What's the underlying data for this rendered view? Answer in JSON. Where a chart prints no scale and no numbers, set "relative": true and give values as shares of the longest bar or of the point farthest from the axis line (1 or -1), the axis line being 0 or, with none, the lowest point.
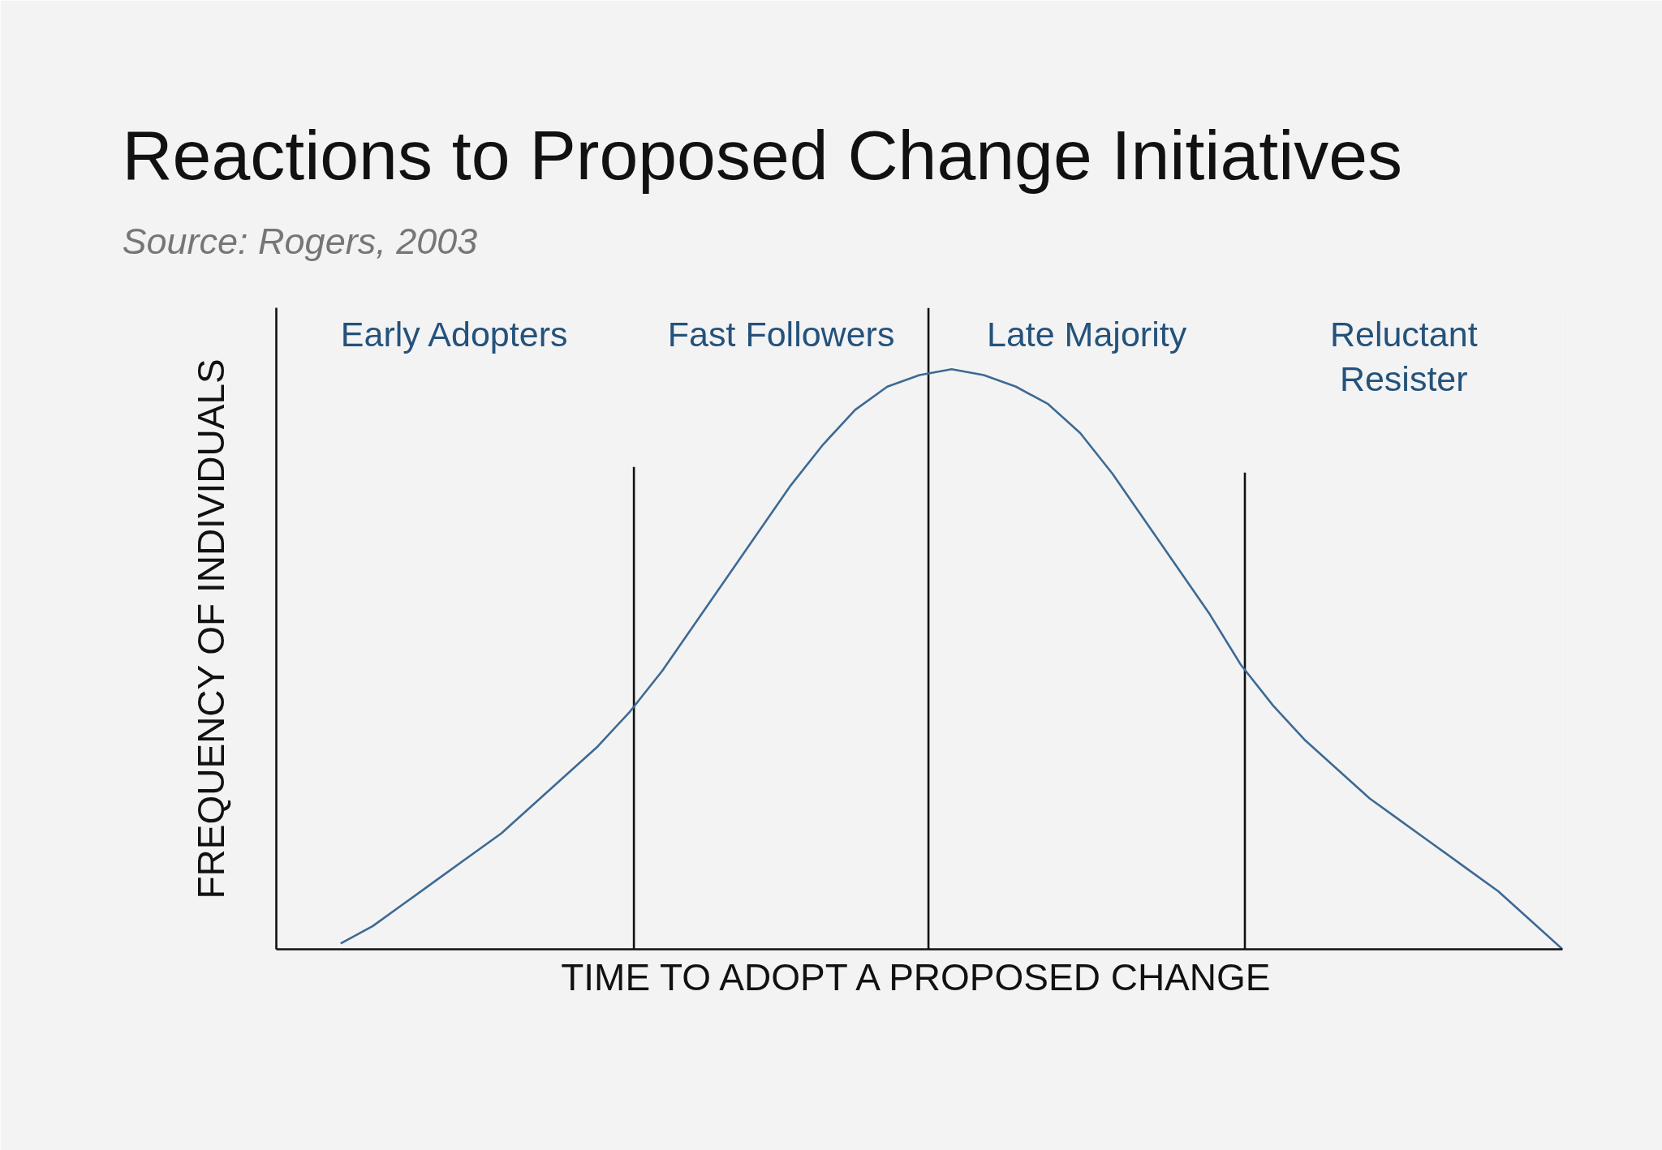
{
  "chart_data": {
    "type": "line",
    "title": "Reactions to Proposed Change Initiatives",
    "subtitle": "Source: Rogers, 2003",
    "xlabel": "TIME TO ADOPT A PROPOSED CHANGE",
    "ylabel": "FREQUENCY OF INDIVIDUALS",
    "relative": true,
    "categories": [
      null,
      null,
      null,
      null,
      null,
      null,
      null,
      null,
      null,
      null,
      null,
      null,
      null,
      null,
      null,
      null,
      null,
      null,
      null,
      null,
      null,
      null,
      null,
      null,
      null,
      null,
      null,
      null,
      null,
      null,
      null,
      null,
      null,
      null,
      null,
      null,
      null,
      null,
      null,
      null,
      null
    ],
    "series": [
      {
        "color": "#3d6a93",
        "values": [
          null,
          null,
          0.01,
          0.04,
          0.08,
          0.12,
          0.16,
          0.2,
          0.25,
          0.3,
          0.35,
          0.41,
          0.48,
          0.56,
          0.64,
          0.72,
          0.8,
          0.87,
          0.93,
          0.97,
          0.99,
          1,
          0.99,
          0.97,
          0.94,
          0.89,
          0.82,
          0.74,
          0.66,
          0.58,
          0.49,
          0.42,
          0.36,
          0.31,
          0.26,
          0.22,
          0.18,
          0.14,
          0.1,
          0.05,
          0
        ]
      }
    ],
    "annotations": [
      "Early Adopters",
      "Fast Followers",
      "Late Majority",
      "Reluctant\nResister"
    ]
  }
}
